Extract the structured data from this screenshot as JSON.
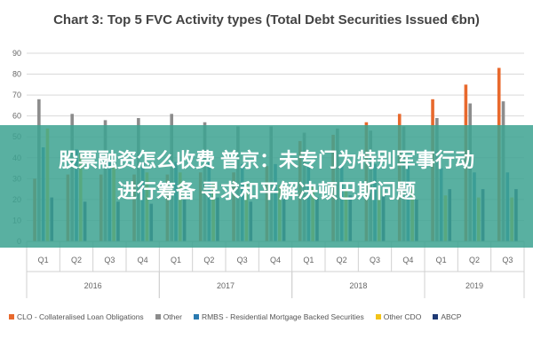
{
  "chart_data": {
    "type": "bar",
    "title": "Chart 3: Top 5 FVC Activity types (Total Debt Securities Issued €bn)",
    "xlabel": "",
    "ylabel": "",
    "ylim": [
      0,
      90
    ],
    "yticks": [
      0,
      10,
      20,
      30,
      40,
      50,
      60,
      70,
      80,
      90
    ],
    "grid": true,
    "legend_position": "bottom",
    "categories": [
      "Q1",
      "Q2",
      "Q3",
      "Q4",
      "Q1",
      "Q2",
      "Q3",
      "Q4",
      "Q1",
      "Q2",
      "Q3",
      "Q4",
      "Q1",
      "Q2",
      "Q3"
    ],
    "groups": [
      {
        "label": "2016",
        "count": 4
      },
      {
        "label": "2017",
        "count": 4
      },
      {
        "label": "2018",
        "count": 4
      },
      {
        "label": "2019",
        "count": 3
      }
    ],
    "series": [
      {
        "name": "CLO - Collateralised Loan Obligations",
        "color": "#e8692d",
        "values": [
          30,
          32,
          32,
          32,
          32,
          33,
          33,
          36,
          48,
          51,
          57,
          61,
          68,
          75,
          83
        ]
      },
      {
        "name": "Other",
        "color": "#8c8c8c",
        "values": [
          68,
          61,
          58,
          59,
          61,
          57,
          55,
          55,
          52,
          54,
          53,
          55,
          59,
          66,
          67
        ]
      },
      {
        "name": "RMBS - Residential Mortgage Backed Securities",
        "color": "#2a7ab0",
        "values": [
          45,
          44,
          38,
          38,
          38,
          38,
          37,
          37,
          37,
          37,
          37,
          36,
          35,
          33,
          33
        ]
      },
      {
        "name": "Other CDO",
        "color": "#f2c318",
        "values": [
          54,
          42,
          36,
          33,
          33,
          28,
          28,
          27,
          26,
          25,
          25,
          25,
          22,
          21,
          21
        ]
      },
      {
        "name": "ABCP",
        "color": "#1f3a75",
        "values": [
          21,
          19,
          19,
          18,
          20,
          21,
          19,
          20,
          21,
          22,
          22,
          20,
          25,
          25,
          25
        ]
      }
    ]
  },
  "overlay": {
    "line1": "股票融资怎么收费 普京：未专门为特别军事行动",
    "line2": "进行筹备 寻求和平解决顿巴斯问题"
  }
}
